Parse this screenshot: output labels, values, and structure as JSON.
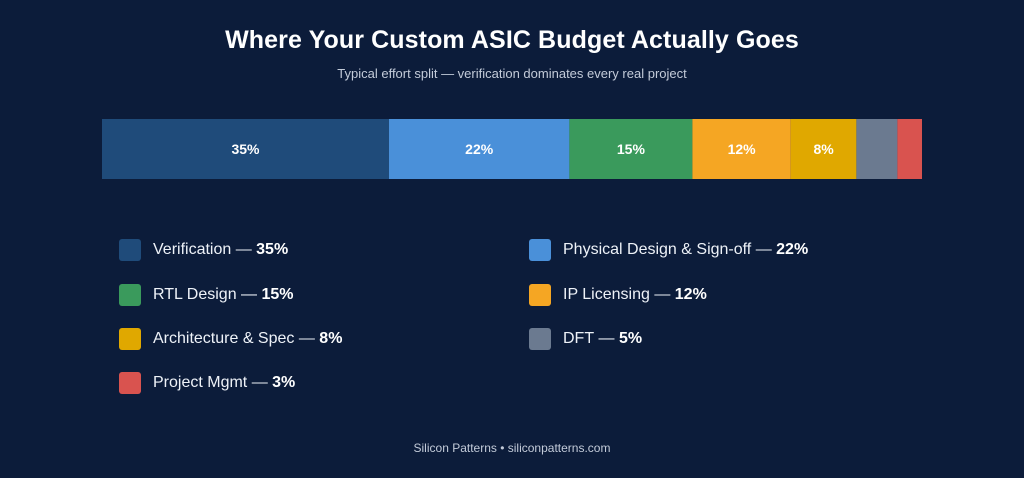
{
  "header": {
    "title": "Where Your Custom ASIC Budget Actually Goes",
    "subtitle": "Typical effort split — verification dominates every real project"
  },
  "chart_data": {
    "type": "bar",
    "orientation": "horizontal-stacked",
    "unit": "%",
    "categories": [
      "Verification",
      "Physical Design & Sign-off",
      "RTL Design",
      "IP Licensing",
      "Architecture & Spec",
      "DFT",
      "Project Mgmt"
    ],
    "values": [
      35,
      22,
      15,
      12,
      8,
      5,
      3
    ],
    "value_labels": [
      "35%",
      "22%",
      "15%",
      "12%",
      "8%",
      "",
      ""
    ],
    "colors": [
      "#1f4b7a",
      "#4a90d9",
      "#3a9a5c",
      "#f5a623",
      "#e0a800",
      "#6b7a90",
      "#d9534f"
    ],
    "legend_placement": "bottom",
    "grid": false
  },
  "legend": {
    "separator": " — ",
    "items": [
      {
        "label": "Verification",
        "pct": "35%"
      },
      {
        "label": "Physical Design & Sign-off",
        "pct": "22%"
      },
      {
        "label": "RTL Design",
        "pct": "15%"
      },
      {
        "label": "IP Licensing",
        "pct": "12%"
      },
      {
        "label": "Architecture & Spec",
        "pct": "8%"
      },
      {
        "label": "DFT",
        "pct": "5%"
      },
      {
        "label": "Project Mgmt",
        "pct": "3%"
      }
    ]
  },
  "footer": {
    "text": "Silicon Patterns • siliconpatterns.com"
  }
}
